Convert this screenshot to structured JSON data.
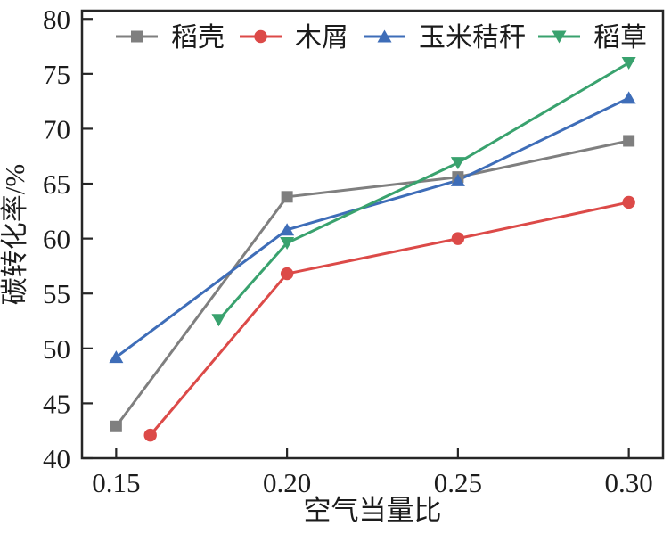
{
  "window": {
    "background": "#ffffff"
  },
  "chart_data": {
    "type": "line",
    "title": "",
    "xlabel": "空气当量比",
    "ylabel": "碳转化率/%",
    "xlim": [
      0.14,
      0.31
    ],
    "ylim": [
      40,
      80.75
    ],
    "xticks": [
      0.15,
      0.2,
      0.25,
      0.3
    ],
    "xtick_labels": [
      "0.15",
      "0.20",
      "0.25",
      "0.30"
    ],
    "yticks": [
      40,
      45,
      50,
      55,
      60,
      65,
      70,
      75,
      80
    ],
    "grid": false,
    "frame": "full-box",
    "axis_color": "#262626",
    "legend": {
      "position": "top-inside-horizontal"
    },
    "series": [
      {
        "id": "rice-husk",
        "name": "稻壳",
        "color": "#7f7f7f",
        "marker": "square",
        "x": [
          0.15,
          0.2,
          0.25,
          0.3
        ],
        "y": [
          42.9,
          63.8,
          65.6,
          68.9
        ]
      },
      {
        "id": "wood-chips",
        "name": "木屑",
        "color": "#dc4a48",
        "marker": "circle",
        "x": [
          0.16,
          0.2,
          0.25,
          0.3
        ],
        "y": [
          42.1,
          56.8,
          60.0,
          63.3
        ]
      },
      {
        "id": "corn-stalk",
        "name": "玉米秸秆",
        "color": "#3e6db8",
        "marker": "triangle-up",
        "x": [
          0.15,
          0.2,
          0.25,
          0.3
        ],
        "y": [
          49.2,
          60.8,
          65.3,
          72.8
        ]
      },
      {
        "id": "rice-straw",
        "name": "稻草",
        "color": "#39a26e",
        "marker": "triangle-down",
        "x": [
          0.18,
          0.2,
          0.25,
          0.3
        ],
        "y": [
          52.6,
          59.6,
          66.9,
          76.0
        ]
      }
    ]
  }
}
